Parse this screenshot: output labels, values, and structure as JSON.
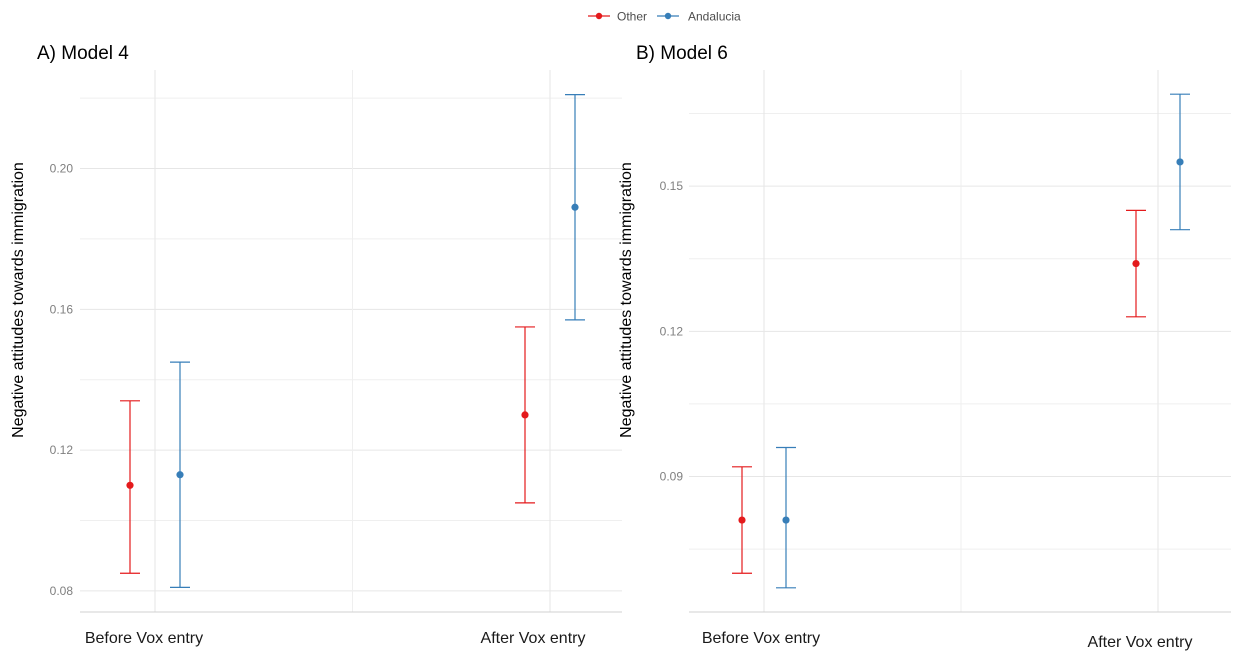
{
  "legend": {
    "items": [
      {
        "label": "Other",
        "color": "#e41a1c"
      },
      {
        "label": "Andalucia",
        "color": "#377eb8"
      }
    ]
  },
  "chart_data": [
    {
      "type": "scatter",
      "title": "A) Model 4",
      "ylabel": "Negative attitudes towards immigration",
      "xlabel": "",
      "categories": [
        "Before Vox entry",
        "After Vox entry"
      ],
      "ylim": [
        0.074,
        0.228
      ],
      "yticks": [
        0.08,
        0.12,
        0.16,
        0.2
      ],
      "ytick_labels": [
        "0.08",
        "0.12",
        "0.16",
        "0.20"
      ],
      "grid": true,
      "legend_position": "top",
      "series": [
        {
          "name": "Other",
          "color": "#e41a1c",
          "values": [
            0.11,
            0.13
          ],
          "lower": [
            0.085,
            0.105
          ],
          "upper": [
            0.134,
            0.155
          ]
        },
        {
          "name": "Andalucia",
          "color": "#377eb8",
          "values": [
            0.113,
            0.189
          ],
          "lower": [
            0.081,
            0.157
          ],
          "upper": [
            0.145,
            0.221
          ]
        }
      ]
    },
    {
      "type": "scatter",
      "title": "B) Model 6",
      "ylabel": "Negative attitudes towards immigration",
      "xlabel": "",
      "categories": [
        "Before Vox entry",
        "After Vox entry"
      ],
      "ylim": [
        0.062,
        0.174
      ],
      "yticks": [
        0.09,
        0.12,
        0.15
      ],
      "ytick_labels": [
        "0.09",
        "0.12",
        "0.15"
      ],
      "grid": true,
      "legend_position": "top",
      "series": [
        {
          "name": "Other",
          "color": "#e41a1c",
          "values": [
            0.081,
            0.134
          ],
          "lower": [
            0.07,
            0.123
          ],
          "upper": [
            0.092,
            0.145
          ]
        },
        {
          "name": "Andalucia",
          "color": "#377eb8",
          "values": [
            0.081,
            0.155
          ],
          "lower": [
            0.067,
            0.141
          ],
          "upper": [
            0.096,
            0.169
          ]
        }
      ]
    }
  ]
}
